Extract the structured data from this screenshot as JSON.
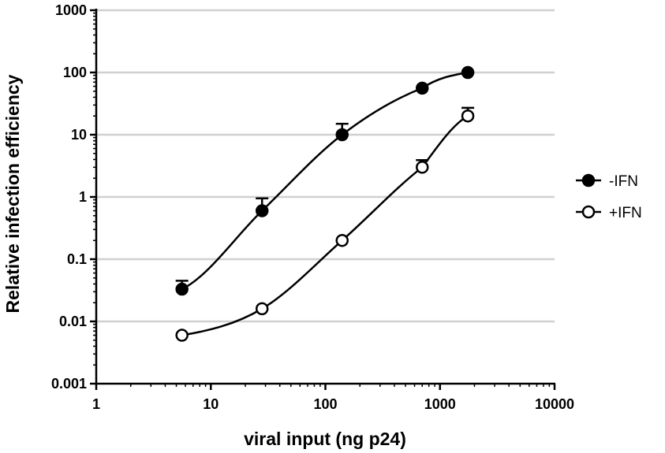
{
  "chart_data": {
    "type": "line",
    "xlabel": "viral input (ng p24)",
    "ylabel": "Relative infection efficiency",
    "x_scale": "log",
    "y_scale": "log",
    "xlim": [
      1,
      10000
    ],
    "ylim": [
      0.001,
      1000
    ],
    "x_ticks": [
      "1",
      "10",
      "100",
      "1000",
      "10000"
    ],
    "y_ticks": [
      "0.001",
      "0.01",
      "0.1",
      "1",
      "10",
      "100",
      "1000"
    ],
    "grid": "horizontal",
    "legend_position": "right",
    "series": [
      {
        "name": "-IFN",
        "marker": "filled-circle",
        "color": "#000000",
        "x": [
          5.6,
          28,
          140,
          700,
          1750
        ],
        "y": [
          0.033,
          0.6,
          10,
          56,
          100
        ],
        "error_upper": [
          0.045,
          0.95,
          15,
          56,
          100
        ]
      },
      {
        "name": "+IFN",
        "marker": "open-circle",
        "color": "#000000",
        "x": [
          5.6,
          28,
          140,
          700,
          1750
        ],
        "y": [
          0.006,
          0.016,
          0.2,
          3,
          20
        ],
        "error_upper": [
          0.006,
          0.016,
          0.2,
          3.9,
          27
        ]
      }
    ]
  }
}
